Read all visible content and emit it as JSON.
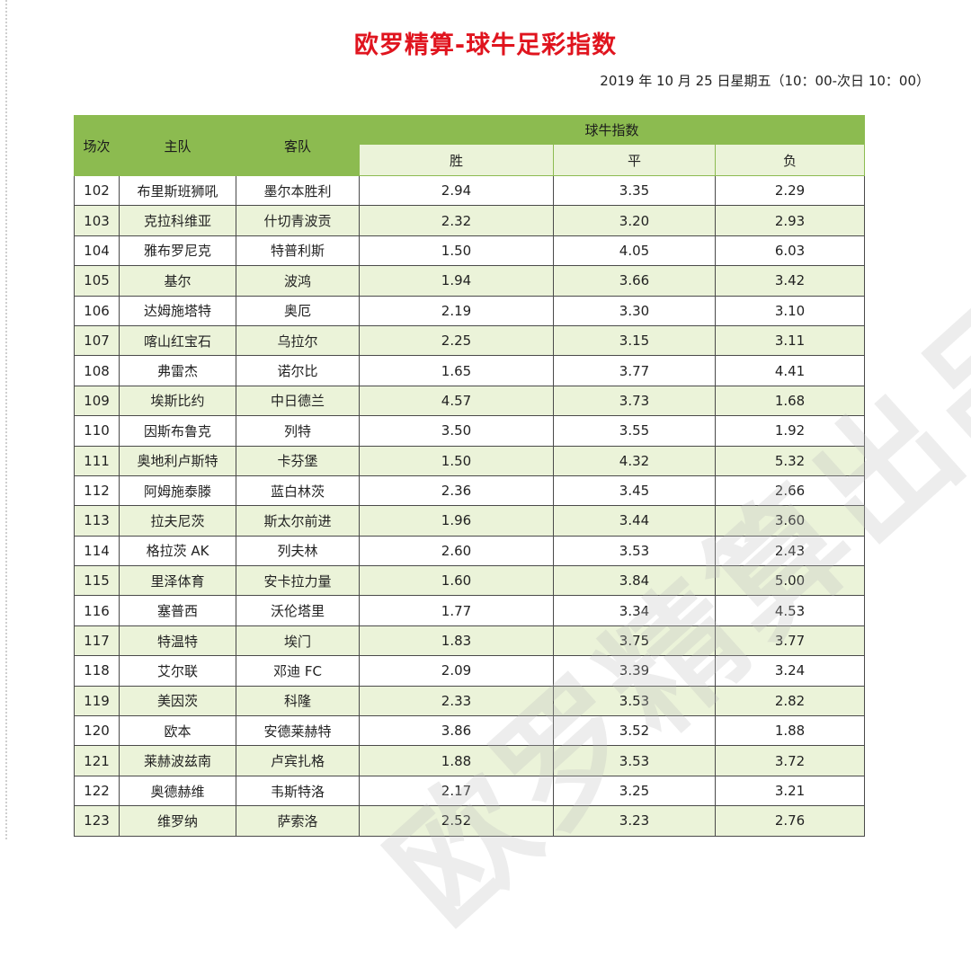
{
  "title": "欧罗精算-球牛足彩指数",
  "subtitle": "2019 年 10 月 25 日星期五（10：00-次日 10：00）",
  "watermark": "欧罗精算出品",
  "table": {
    "headers": {
      "match": "场次",
      "home": "主队",
      "away": "客队",
      "index": "球牛指数",
      "win": "胜",
      "draw": "平",
      "lose": "负"
    },
    "rows": [
      {
        "no": "102",
        "home": "布里斯班狮吼",
        "away": "墨尔本胜利",
        "win": "2.94",
        "draw": "3.35",
        "lose": "2.29"
      },
      {
        "no": "103",
        "home": "克拉科维亚",
        "away": "什切青波贡",
        "win": "2.32",
        "draw": "3.20",
        "lose": "2.93"
      },
      {
        "no": "104",
        "home": "雅布罗尼克",
        "away": "特普利斯",
        "win": "1.50",
        "draw": "4.05",
        "lose": "6.03"
      },
      {
        "no": "105",
        "home": "基尔",
        "away": "波鸿",
        "win": "1.94",
        "draw": "3.66",
        "lose": "3.42"
      },
      {
        "no": "106",
        "home": "达姆施塔特",
        "away": "奥厄",
        "win": "2.19",
        "draw": "3.30",
        "lose": "3.10"
      },
      {
        "no": "107",
        "home": "喀山红宝石",
        "away": "乌拉尔",
        "win": "2.25",
        "draw": "3.15",
        "lose": "3.11"
      },
      {
        "no": "108",
        "home": "弗雷杰",
        "away": "诺尔比",
        "win": "1.65",
        "draw": "3.77",
        "lose": "4.41"
      },
      {
        "no": "109",
        "home": "埃斯比约",
        "away": "中日德兰",
        "win": "4.57",
        "draw": "3.73",
        "lose": "1.68"
      },
      {
        "no": "110",
        "home": "因斯布鲁克",
        "away": "列特",
        "win": "3.50",
        "draw": "3.55",
        "lose": "1.92"
      },
      {
        "no": "111",
        "home": "奥地利卢斯特",
        "away": "卡芬堡",
        "win": "1.50",
        "draw": "4.32",
        "lose": "5.32"
      },
      {
        "no": "112",
        "home": "阿姆施泰滕",
        "away": "蓝白林茨",
        "win": "2.36",
        "draw": "3.45",
        "lose": "2.66"
      },
      {
        "no": "113",
        "home": "拉夫尼茨",
        "away": "斯太尔前进",
        "win": "1.96",
        "draw": "3.44",
        "lose": "3.60"
      },
      {
        "no": "114",
        "home": "格拉茨 AK",
        "away": "列夫林",
        "win": "2.60",
        "draw": "3.53",
        "lose": "2.43"
      },
      {
        "no": "115",
        "home": "里泽体育",
        "away": "安卡拉力量",
        "win": "1.60",
        "draw": "3.84",
        "lose": "5.00"
      },
      {
        "no": "116",
        "home": "塞普西",
        "away": "沃伦塔里",
        "win": "1.77",
        "draw": "3.34",
        "lose": "4.53"
      },
      {
        "no": "117",
        "home": "特温特",
        "away": "埃门",
        "win": "1.83",
        "draw": "3.75",
        "lose": "3.77"
      },
      {
        "no": "118",
        "home": "艾尔联",
        "away": "邓迪 FC",
        "win": "2.09",
        "draw": "3.39",
        "lose": "3.24"
      },
      {
        "no": "119",
        "home": "美因茨",
        "away": "科隆",
        "win": "2.33",
        "draw": "3.53",
        "lose": "2.82"
      },
      {
        "no": "120",
        "home": "欧本",
        "away": "安德莱赫特",
        "win": "3.86",
        "draw": "3.52",
        "lose": "1.88"
      },
      {
        "no": "121",
        "home": "莱赫波兹南",
        "away": "卢宾扎格",
        "win": "1.88",
        "draw": "3.53",
        "lose": "3.72"
      },
      {
        "no": "122",
        "home": "奥德赫维",
        "away": "韦斯特洛",
        "win": "2.17",
        "draw": "3.25",
        "lose": "3.21"
      },
      {
        "no": "123",
        "home": "维罗纳",
        "away": "萨索洛",
        "win": "2.52",
        "draw": "3.23",
        "lose": "2.76"
      }
    ]
  }
}
